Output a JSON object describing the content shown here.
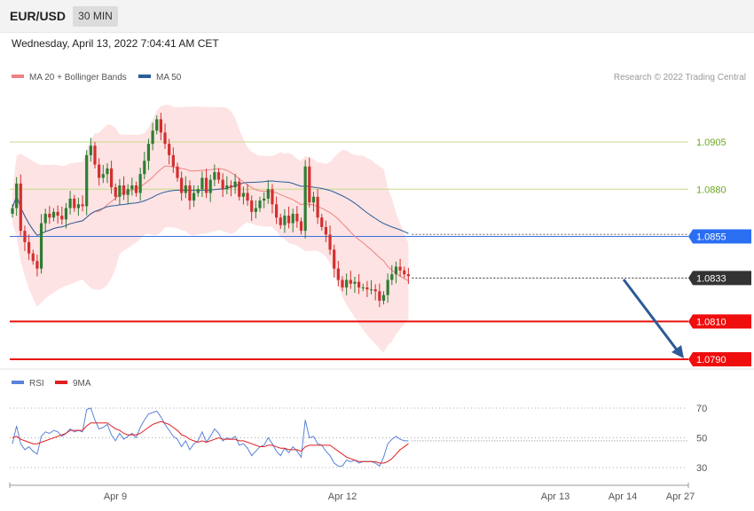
{
  "header": {
    "symbol": "EUR/USD",
    "timeframe": "30 MIN",
    "datetime": "Wednesday, April 13, 2022 7:04:41 AM CET"
  },
  "chart_data": {
    "type": "candlestick",
    "legend": [
      {
        "label": "MA 20 + Bollinger Bands",
        "color": "#f08080"
      },
      {
        "label": "MA 50",
        "color": "#2b5d9b"
      }
    ],
    "credit": "Research © 2022 Trading Central",
    "y_range": [
      1.078,
      1.095
    ],
    "levels": [
      {
        "value": 1.0905,
        "label": "1.0905",
        "kind": "resistance"
      },
      {
        "value": 1.088,
        "label": "1.0880",
        "kind": "resistance"
      },
      {
        "value": 1.0855,
        "label": "1.0855",
        "kind": "pivot"
      },
      {
        "value": 1.0833,
        "label": "1.0833",
        "kind": "last"
      },
      {
        "value": 1.081,
        "label": "1.0810",
        "kind": "support"
      },
      {
        "value": 1.079,
        "label": "1.0790",
        "kind": "support"
      }
    ],
    "x_ticks": [
      "Apr 9",
      "Apr 12",
      "Apr 13",
      "Apr 14",
      "Apr 27"
    ],
    "close": [
      1.087,
      1.0883,
      1.0858,
      1.0852,
      1.0846,
      1.0842,
      1.0838,
      1.0862,
      1.0867,
      1.0865,
      1.0868,
      1.0866,
      1.0864,
      1.087,
      1.0875,
      1.087,
      1.0872,
      1.0871,
      1.0898,
      1.0903,
      1.0893,
      1.0886,
      1.0888,
      1.0891,
      1.0881,
      1.0876,
      1.0882,
      1.0877,
      1.088,
      1.0882,
      1.0878,
      1.0888,
      1.0895,
      1.0904,
      1.0911,
      1.0917,
      1.091,
      1.0904,
      1.0898,
      1.0892,
      1.0886,
      1.0878,
      1.0882,
      1.0874,
      1.0878,
      1.088,
      1.0886,
      1.0878,
      1.0885,
      1.0889,
      1.0885,
      1.088,
      1.0882,
      1.0881,
      1.0884,
      1.0876,
      1.0878,
      1.0874,
      1.0868,
      1.087,
      1.0874,
      1.0875,
      1.088,
      1.0872,
      1.0865,
      1.0861,
      1.0866,
      1.0862,
      1.0867,
      1.0863,
      1.0858,
      1.0892,
      1.0873,
      1.0876,
      1.0865,
      1.086,
      1.0856,
      1.0848,
      1.0838,
      1.0832,
      1.0828,
      1.0832,
      1.083,
      1.0831,
      1.0828,
      1.0828,
      1.0827,
      1.0827,
      1.0826,
      1.0821,
      1.0824,
      1.0832,
      1.0835,
      1.0839,
      1.0837,
      1.0835,
      1.0834
    ],
    "rsi": {
      "label": "RSI",
      "color": "#5a82d8",
      "range": [
        20,
        80
      ],
      "ticks": [
        "70",
        "50",
        "30"
      ],
      "values": [
        46,
        58,
        46,
        42,
        44,
        41,
        39,
        51,
        54,
        53,
        55,
        54,
        51,
        53,
        56,
        54,
        55,
        54,
        69,
        70,
        62,
        56,
        57,
        59,
        52,
        48,
        53,
        49,
        51,
        53,
        50,
        57,
        62,
        66,
        67,
        68,
        64,
        59,
        55,
        51,
        49,
        44,
        48,
        42,
        46,
        48,
        54,
        47,
        51,
        56,
        53,
        48,
        50,
        49,
        51,
        45,
        46,
        43,
        38,
        41,
        44,
        45,
        50,
        46,
        41,
        38,
        43,
        40,
        44,
        41,
        37,
        62,
        50,
        51,
        46,
        45,
        41,
        38,
        33,
        31,
        31,
        35,
        34,
        35,
        33,
        34,
        34,
        34,
        33,
        31,
        37,
        46,
        49,
        51,
        49,
        48,
        48
      ]
    },
    "rsi_ma": {
      "label": "9MA",
      "color": "#e02020",
      "values": [
        50,
        51,
        49,
        48,
        47,
        46,
        46,
        47,
        48,
        49,
        50,
        51,
        52,
        53,
        55,
        55,
        55,
        55,
        58,
        60,
        60,
        60,
        60,
        60,
        58,
        56,
        55,
        53,
        52,
        52,
        52,
        53,
        55,
        57,
        59,
        60,
        61,
        60,
        59,
        57,
        55,
        52,
        51,
        49,
        48,
        47,
        48,
        47,
        48,
        49,
        50,
        49,
        49,
        49,
        49,
        48,
        48,
        47,
        46,
        45,
        44,
        44,
        45,
        45,
        44,
        43,
        43,
        42,
        42,
        42,
        41,
        44,
        45,
        45,
        45,
        45,
        45,
        45,
        43,
        41,
        39,
        37,
        36,
        35,
        34,
        34,
        34,
        34,
        34,
        33,
        33,
        34,
        36,
        39,
        42,
        44,
        46
      ]
    }
  }
}
